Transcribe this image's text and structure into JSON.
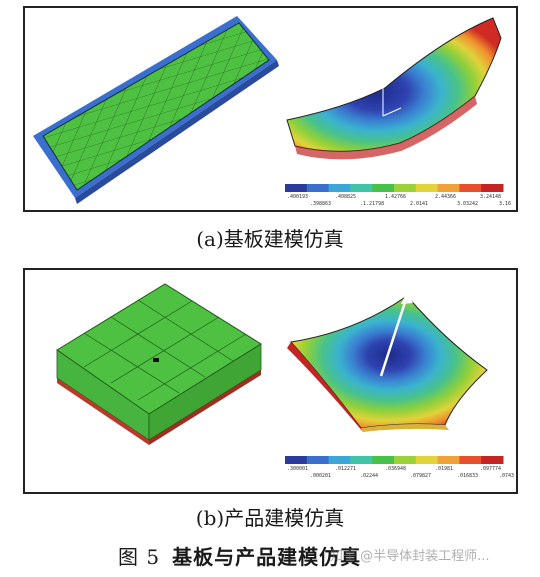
{
  "panel_a": {
    "caption": "(a)基板建模仿真",
    "scale_top": [
      ".400193",
      ".408825",
      "1.42766",
      "2.44366",
      "3.24148"
    ],
    "scale_bottom": [
      ".398863",
      ".1.21798",
      "2.0141",
      "3.03242",
      "3.16"
    ]
  },
  "panel_b": {
    "caption": "(b)产品建模仿真",
    "scale_top": [
      ".300001",
      ".012271",
      ".036948",
      ".01981",
      ".097774"
    ],
    "scale_bottom": [
      ".000201",
      ".02244",
      ".079827",
      ".016833",
      ".0743"
    ]
  },
  "figure": {
    "number": "图 5",
    "title": "基板与产品建模仿真"
  },
  "watermark": "知乎 @半导体封装工程师...",
  "colors": {
    "contour": [
      "#2a3b9c",
      "#3a6fcc",
      "#3aa7d6",
      "#3fc4a6",
      "#46c24a",
      "#9bd23a",
      "#e2d33a",
      "#f0a23a",
      "#e6502a",
      "#c42424"
    ],
    "mesh_green": "#4fc142",
    "mesh_blue": "#3a6fd0",
    "substrate_red": "#b83a2a"
  }
}
